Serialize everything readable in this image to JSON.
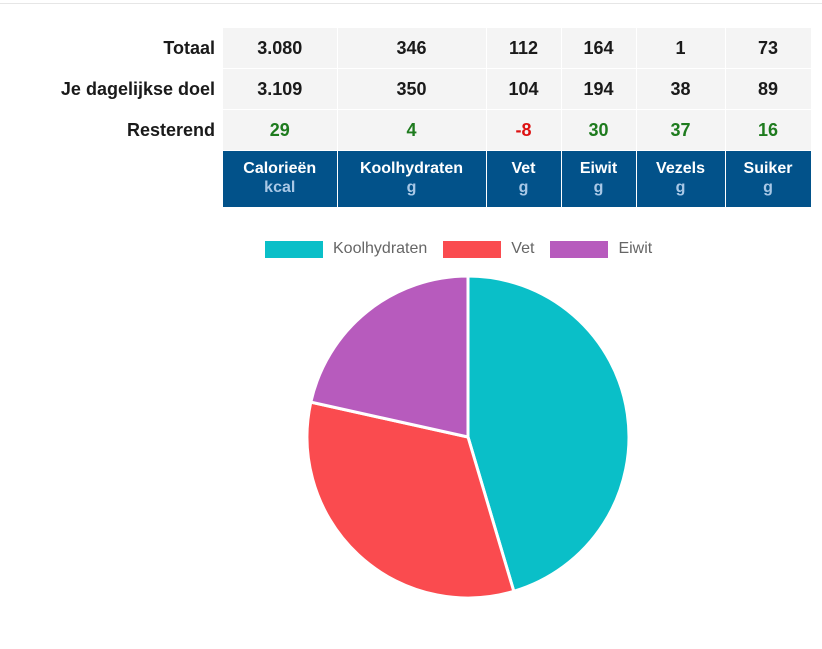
{
  "table": {
    "rows": [
      {
        "label": "Totaal",
        "values": [
          "3.080",
          "346",
          "112",
          "164",
          "1",
          "73"
        ]
      },
      {
        "label": "Je dagelijkse doel",
        "values": [
          "3.109",
          "350",
          "104",
          "194",
          "38",
          "89"
        ]
      },
      {
        "label": "Resterend",
        "values": [
          "29",
          "4",
          "-8",
          "30",
          "37",
          "16"
        ]
      }
    ],
    "columns": [
      {
        "name": "Calorieën",
        "unit": "kcal"
      },
      {
        "name": "Koolhydraten",
        "unit": "g"
      },
      {
        "name": "Vet",
        "unit": "g"
      },
      {
        "name": "Eiwit",
        "unit": "g"
      },
      {
        "name": "Vezels",
        "unit": "g"
      },
      {
        "name": "Suiker",
        "unit": "g"
      }
    ],
    "colors": {
      "header_bg": "#02528a",
      "unit_text": "#a9c8e6",
      "positive": "#1e7b1e",
      "negative": "#dd1111",
      "cell_bg": "#f4f4f4"
    }
  },
  "chart_data": {
    "type": "pie",
    "legend_position": "top",
    "series": [
      {
        "name": "Koolhydraten",
        "value": 346,
        "color": "#0abfc8"
      },
      {
        "name": "Vet",
        "value": 252,
        "color": "#fa4b4f"
      },
      {
        "name": "Eiwit",
        "value": 164,
        "color": "#b75bbd"
      }
    ]
  }
}
